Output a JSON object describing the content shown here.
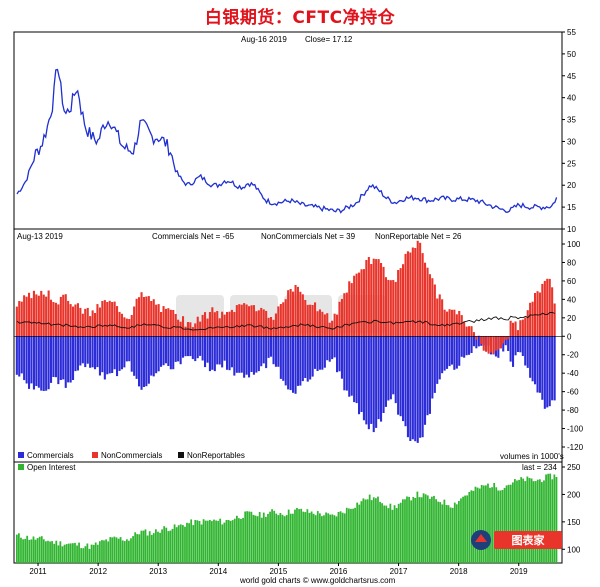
{
  "page_title": "白银期货：CFTC净持仓",
  "footer": "world gold charts © www.goldchartsrus.com",
  "logo_text": "图表家",
  "chart_data": [
    {
      "type": "line",
      "panel": "price",
      "header_date": "Aug-16  2019",
      "header_close": "Close= 17.12",
      "ylim": [
        10,
        55
      ],
      "yticks": [
        10,
        15,
        20,
        25,
        30,
        35,
        40,
        45,
        50,
        55
      ],
      "color": "#1f2fd0",
      "series": [
        {
          "x": [
            2010.65,
            2010.8,
            2010.95,
            2011.05,
            2011.15,
            2011.25,
            2011.32,
            2011.38,
            2011.45,
            2011.55,
            2011.63,
            2011.68,
            2011.72,
            2011.8,
            2011.9,
            2012.0,
            2012.1,
            2012.2,
            2012.3,
            2012.4,
            2012.5,
            2012.6,
            2012.7,
            2012.8,
            2012.9,
            2013.0,
            2013.1,
            2013.2,
            2013.3,
            2013.4,
            2013.5,
            2013.6,
            2013.7,
            2013.8,
            2013.9,
            2014.0,
            2014.1,
            2014.2,
            2014.3,
            2014.4,
            2014.5,
            2014.6,
            2014.7,
            2014.8,
            2014.9,
            2015.0,
            2015.2,
            2015.4,
            2015.6,
            2015.8,
            2015.95,
            2016.1,
            2016.3,
            2016.5,
            2016.55,
            2016.7,
            2016.8,
            2016.95,
            2017.1,
            2017.3,
            2017.5,
            2017.7,
            2017.9,
            2018.1,
            2018.3,
            2018.5,
            2018.7,
            2018.85,
            2019.0,
            2019.2,
            2019.4,
            2019.55,
            2019.63
          ],
          "values": [
            18,
            21,
            27,
            29,
            33,
            39,
            48,
            42,
            36,
            38,
            42,
            41,
            37,
            33,
            31,
            30,
            34,
            35,
            32,
            29,
            28,
            28,
            34,
            33,
            31,
            31,
            30,
            28,
            23,
            21,
            20,
            21,
            22,
            21,
            20,
            20,
            21,
            21,
            20,
            19.5,
            20.5,
            20,
            18,
            16.5,
            16,
            16,
            16.5,
            15.5,
            15,
            14.5,
            14,
            14.5,
            16,
            19.5,
            20,
            18.5,
            17,
            16,
            17,
            17.2,
            16.5,
            17,
            16.8,
            16.8,
            16.5,
            15.5,
            14.5,
            14.2,
            15.5,
            15,
            15,
            15.2,
            17.12
          ]
        }
      ]
    },
    {
      "type": "bar",
      "panel": "cot",
      "header_date": "Aug-13  2019",
      "header_commercials": "Commercials Net = -65",
      "header_noncommercials": "NonCommercials Net = 39",
      "header_nonreportable": "NonReportable Net = 26",
      "ylim": [
        -120,
        100
      ],
      "yticks": [
        -120,
        -100,
        -80,
        -60,
        -40,
        -20,
        0,
        20,
        40,
        60,
        80,
        100
      ],
      "legend": [
        {
          "name": "Commercials",
          "color": "#2b2bd8"
        },
        {
          "name": "NonCommercials",
          "color": "#e8342a"
        },
        {
          "name": "NonReportables",
          "color": "#111111"
        }
      ],
      "volumes_note": "volumes in 1000's",
      "x": [
        2010.65,
        2010.9,
        2011.1,
        2011.3,
        2011.5,
        2011.7,
        2011.9,
        2012.1,
        2012.3,
        2012.5,
        2012.7,
        2012.9,
        2013.1,
        2013.3,
        2013.5,
        2013.7,
        2013.9,
        2014.1,
        2014.3,
        2014.5,
        2014.7,
        2014.9,
        2015.1,
        2015.3,
        2015.5,
        2015.7,
        2015.9,
        2016.1,
        2016.3,
        2016.45,
        2016.6,
        2016.75,
        2016.9,
        2017.05,
        2017.2,
        2017.35,
        2017.5,
        2017.65,
        2017.8,
        2018.0,
        2018.2,
        2018.4,
        2018.6,
        2018.8,
        2018.9,
        2019.0,
        2019.2,
        2019.4,
        2019.5,
        2019.6
      ],
      "commercials": [
        -40,
        -55,
        -60,
        -45,
        -55,
        -35,
        -30,
        -45,
        -40,
        -25,
        -55,
        -45,
        -35,
        -30,
        -20,
        -25,
        -35,
        -30,
        -40,
        -45,
        -35,
        -25,
        -50,
        -60,
        -45,
        -35,
        -20,
        -55,
        -75,
        -95,
        -100,
        -85,
        -65,
        -90,
        -110,
        -115,
        -85,
        -55,
        -35,
        -30,
        -15,
        -5,
        -25,
        -10,
        -30,
        -15,
        -45,
        -70,
        -80,
        -65
      ],
      "noncommercials": [
        35,
        45,
        50,
        38,
        42,
        30,
        25,
        38,
        35,
        20,
        45,
        40,
        28,
        25,
        12,
        18,
        28,
        22,
        32,
        38,
        28,
        18,
        42,
        52,
        38,
        28,
        15,
        48,
        65,
        80,
        85,
        72,
        55,
        78,
        95,
        100,
        75,
        45,
        30,
        25,
        10,
        -10,
        -20,
        -5,
        20,
        10,
        35,
        55,
        62,
        39
      ],
      "nonreportables": [
        15,
        15,
        14,
        12,
        12,
        10,
        10,
        12,
        11,
        10,
        12,
        12,
        10,
        10,
        8,
        8,
        10,
        9,
        11,
        12,
        10,
        9,
        10,
        12,
        12,
        10,
        8,
        12,
        14,
        15,
        16,
        15,
        14,
        14,
        16,
        16,
        14,
        12,
        12,
        14,
        16,
        18,
        20,
        18,
        22,
        20,
        22,
        24,
        25,
        26
      ]
    },
    {
      "type": "bar",
      "panel": "open_interest",
      "legend": [
        {
          "name": "Open Interest",
          "color": "#2fb52f"
        }
      ],
      "last_note": "last = 234",
      "ylim": [
        75,
        250
      ],
      "yticks": [
        100,
        150,
        200,
        250
      ],
      "xlabels": [
        "2011",
        "2012",
        "2013",
        "2014",
        "2015",
        "2016",
        "2017",
        "2018",
        "2019"
      ],
      "xlabel_positions": [
        2011,
        2012,
        2013,
        2014,
        2015,
        2016,
        2017,
        2018,
        2019
      ],
      "x": [
        2010.65,
        2010.9,
        2011.1,
        2011.3,
        2011.5,
        2011.7,
        2011.9,
        2012.1,
        2012.3,
        2012.5,
        2012.7,
        2012.9,
        2013.1,
        2013.3,
        2013.5,
        2013.7,
        2013.9,
        2014.1,
        2014.3,
        2014.5,
        2014.7,
        2014.9,
        2015.1,
        2015.3,
        2015.5,
        2015.7,
        2015.9,
        2016.1,
        2016.3,
        2016.5,
        2016.7,
        2016.9,
        2017.1,
        2017.3,
        2017.5,
        2017.7,
        2017.9,
        2018.1,
        2018.3,
        2018.5,
        2018.7,
        2018.9,
        2019.1,
        2019.3,
        2019.5,
        2019.63
      ],
      "values": [
        125,
        120,
        118,
        112,
        110,
        108,
        105,
        115,
        120,
        118,
        132,
        130,
        138,
        140,
        148,
        150,
        152,
        150,
        158,
        165,
        162,
        168,
        165,
        172,
        168,
        165,
        160,
        170,
        182,
        195,
        190,
        175,
        188,
        200,
        195,
        188,
        180,
        198,
        210,
        218,
        212,
        222,
        228,
        225,
        232,
        234
      ]
    }
  ]
}
